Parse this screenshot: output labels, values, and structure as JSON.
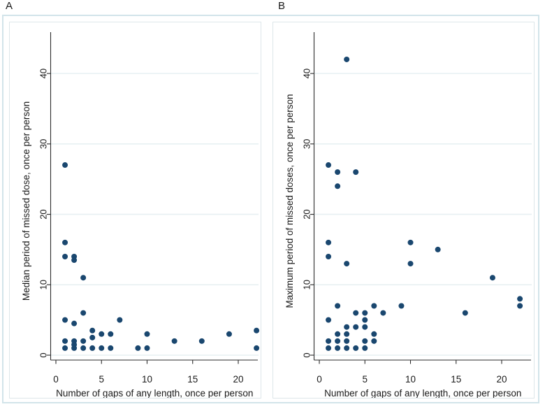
{
  "figure": {
    "background": "#ffffff",
    "outer_border_color": "#d2e4ea",
    "panel_border_color": "#dde6e9",
    "grid_color": "#e7f0f2",
    "axis_color": "#2b2b2b",
    "text_color": "#1a1a1a",
    "marker_color": "#1a476f"
  },
  "panels": [
    {
      "letter": "A"
    },
    {
      "letter": "B"
    }
  ],
  "chart_data": [
    {
      "type": "scatter",
      "panel": "A",
      "title": "",
      "xlabel": "Number of gaps of any length, once per person",
      "ylabel": "Median period of missed dose, once per person",
      "x_ticks": [
        0,
        5,
        10,
        15,
        20
      ],
      "y_ticks": [
        0,
        10,
        20,
        30,
        40
      ],
      "xlim": [
        -0.6,
        22.8
      ],
      "ylim": [
        -0.7,
        45.9
      ],
      "grid": "horizontal",
      "legend": "none",
      "marker": "filled-circle",
      "points": [
        [
          1,
          27
        ],
        [
          1,
          16
        ],
        [
          1,
          14
        ],
        [
          2,
          14
        ],
        [
          2,
          13.5
        ],
        [
          3,
          11
        ],
        [
          3,
          6
        ],
        [
          1,
          5
        ],
        [
          7,
          5
        ],
        [
          2,
          4.5
        ],
        [
          4,
          3.5
        ],
        [
          22,
          3.5
        ],
        [
          5,
          3
        ],
        [
          6,
          3
        ],
        [
          10,
          3
        ],
        [
          19,
          3
        ],
        [
          4,
          2.5
        ],
        [
          1,
          2
        ],
        [
          2,
          2
        ],
        [
          3,
          2
        ],
        [
          13,
          2
        ],
        [
          16,
          2
        ],
        [
          2,
          1.5
        ],
        [
          1,
          1
        ],
        [
          2,
          1
        ],
        [
          3,
          1
        ],
        [
          4,
          1
        ],
        [
          5,
          1
        ],
        [
          6,
          1
        ],
        [
          9,
          1
        ],
        [
          10,
          1
        ],
        [
          22,
          1
        ]
      ]
    },
    {
      "type": "scatter",
      "panel": "B",
      "title": "",
      "xlabel": "Number of gaps of any length, once per person",
      "ylabel": "Maximum period of missed doses, once per person",
      "x_ticks": [
        0,
        5,
        10,
        15,
        20
      ],
      "y_ticks": [
        0,
        10,
        20,
        30,
        40
      ],
      "xlim": [
        -0.6,
        22.8
      ],
      "ylim": [
        -0.7,
        45.9
      ],
      "grid": "horizontal",
      "legend": "none",
      "marker": "filled-circle",
      "points": [
        [
          3,
          42
        ],
        [
          1,
          27
        ],
        [
          2,
          26
        ],
        [
          4,
          26
        ],
        [
          2,
          24
        ],
        [
          1,
          16
        ],
        [
          10,
          16
        ],
        [
          13,
          15
        ],
        [
          1,
          14
        ],
        [
          3,
          13
        ],
        [
          10,
          13
        ],
        [
          19,
          11
        ],
        [
          22,
          8
        ],
        [
          2,
          7
        ],
        [
          6,
          7
        ],
        [
          9,
          7
        ],
        [
          22,
          7
        ],
        [
          4,
          6
        ],
        [
          5,
          6
        ],
        [
          7,
          6
        ],
        [
          16,
          6
        ],
        [
          1,
          5
        ],
        [
          5,
          5
        ],
        [
          3,
          4
        ],
        [
          4,
          4
        ],
        [
          5,
          4
        ],
        [
          2,
          3
        ],
        [
          3,
          3
        ],
        [
          6,
          3
        ],
        [
          1,
          2
        ],
        [
          2,
          2
        ],
        [
          3,
          2
        ],
        [
          5,
          2
        ],
        [
          6,
          2
        ],
        [
          1,
          1
        ],
        [
          2,
          1
        ],
        [
          3,
          1
        ],
        [
          4,
          1
        ],
        [
          5,
          1
        ]
      ]
    }
  ]
}
